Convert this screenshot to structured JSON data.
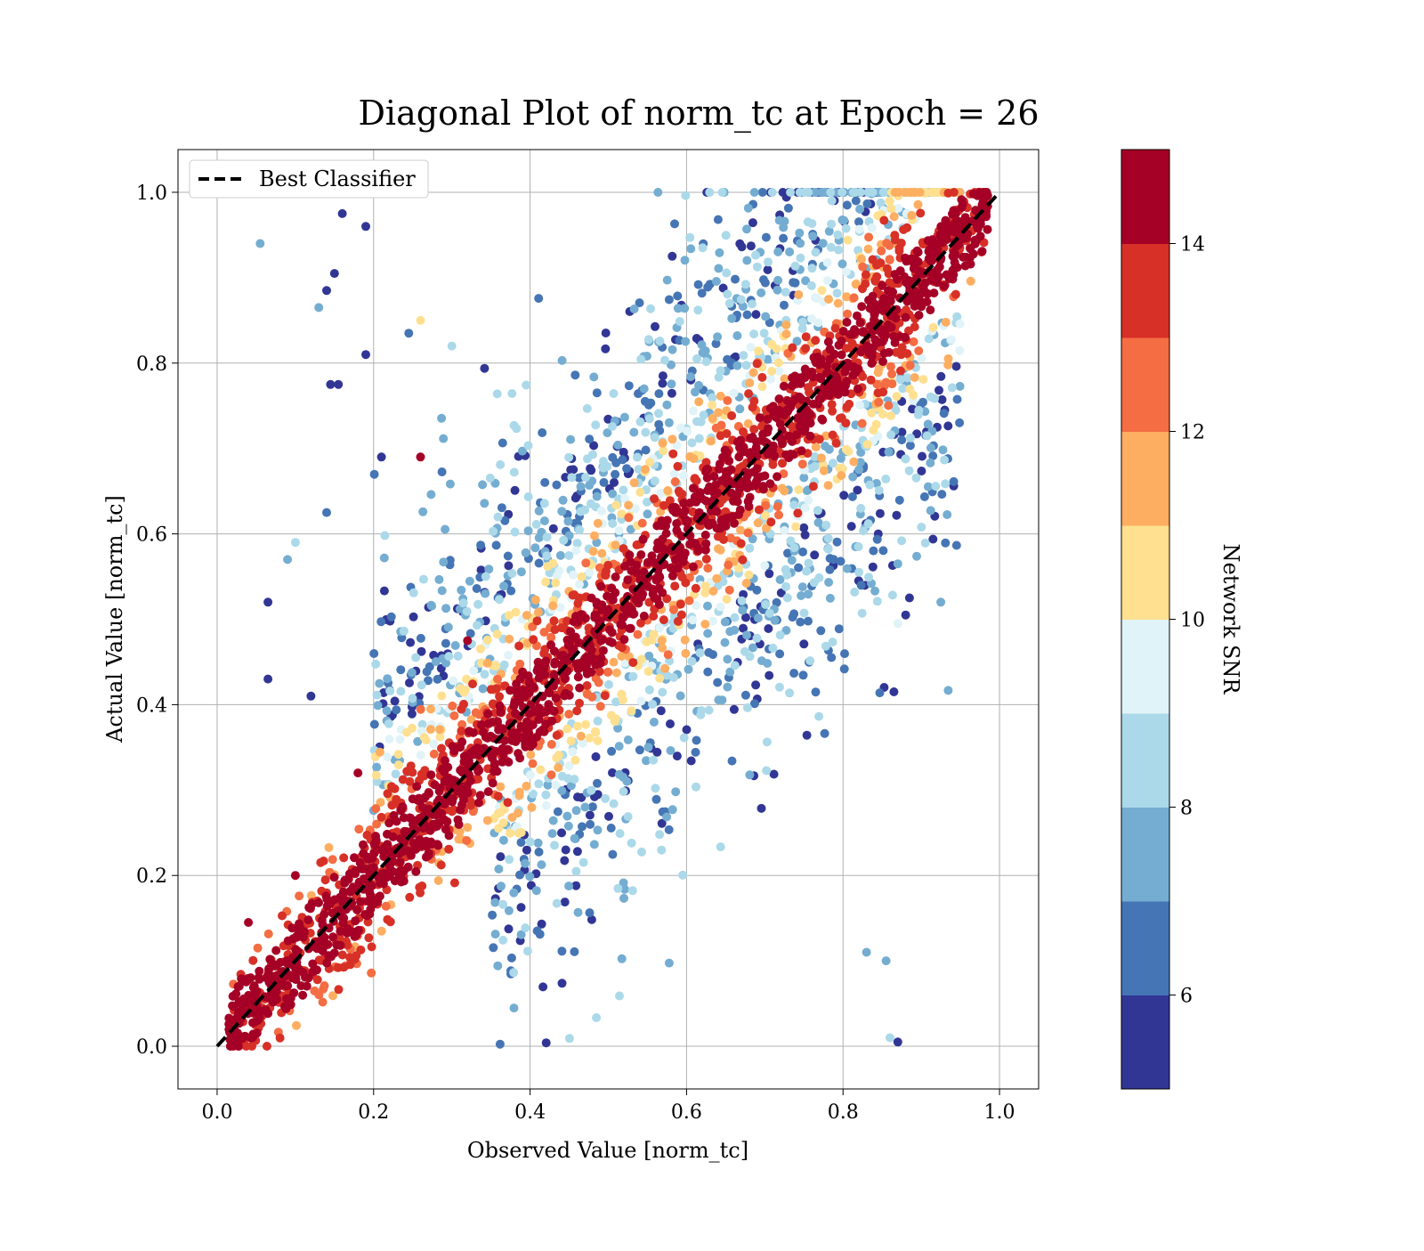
{
  "chart_data": {
    "type": "scatter",
    "title": "Diagonal Plot of norm_tc at Epoch = 26",
    "xlabel": "Observed Value [norm_tc]",
    "ylabel": "Actual Value [norm_tc]",
    "xlim": [
      -0.05,
      1.05
    ],
    "ylim": [
      -0.05,
      1.05
    ],
    "xticks": [
      "0.0",
      "0.2",
      "0.4",
      "0.6",
      "0.8",
      "1.0"
    ],
    "yticks": [
      "0.0",
      "0.2",
      "0.4",
      "0.6",
      "0.8",
      "1.0"
    ],
    "grid": true,
    "legend": {
      "position": "top-left",
      "entries": [
        {
          "name": "Best Classifier",
          "style": "dashed",
          "color": "#000000"
        }
      ]
    },
    "reference_line": {
      "name": "Best Classifier",
      "x": [
        0.0,
        1.0
      ],
      "y": [
        0.0,
        1.0
      ]
    },
    "colorbar": {
      "label": "Network SNR",
      "range": [
        5,
        15
      ],
      "ticks": [
        "6",
        "8",
        "10",
        "12",
        "14"
      ],
      "colors": [
        "#313695",
        "#4575b4",
        "#74add1",
        "#abd9e9",
        "#e0f3f8",
        "#fee090",
        "#fdae61",
        "#f46d43",
        "#d73027",
        "#a50026"
      ]
    },
    "points": [
      [
        0.055,
        0.94,
        7.5
      ],
      [
        0.13,
        0.865,
        7.0
      ],
      [
        0.15,
        0.905,
        5.5
      ],
      [
        0.16,
        0.975,
        5.5
      ],
      [
        0.19,
        0.96,
        5.5
      ],
      [
        0.19,
        0.81,
        5.5
      ],
      [
        0.14,
        0.885,
        5.5
      ],
      [
        0.145,
        0.775,
        5.5
      ],
      [
        0.155,
        0.775,
        5.5
      ],
      [
        0.21,
        0.69,
        5.5
      ],
      [
        0.1,
        0.59,
        8.0
      ],
      [
        0.09,
        0.57,
        7.5
      ],
      [
        0.14,
        0.625,
        6.5
      ],
      [
        0.065,
        0.52,
        5.5
      ],
      [
        0.065,
        0.43,
        5.5
      ],
      [
        0.12,
        0.41,
        5.5
      ],
      [
        0.26,
        0.69,
        14.5
      ],
      [
        0.32,
        0.475,
        14.5
      ],
      [
        0.925,
        0.52,
        7.5
      ],
      [
        0.885,
        0.525,
        5.5
      ],
      [
        0.88,
        0.505,
        5.5
      ],
      [
        0.87,
        0.495,
        9.0
      ],
      [
        0.865,
        0.415,
        5.5
      ],
      [
        0.87,
        0.565,
        7.5
      ],
      [
        0.845,
        0.6,
        5.5
      ],
      [
        0.82,
        0.545,
        5.5
      ],
      [
        0.87,
        0.005,
        5.5
      ],
      [
        0.855,
        0.1,
        7.5
      ],
      [
        0.83,
        0.11,
        7.0
      ],
      [
        0.86,
        0.01,
        8.0
      ],
      [
        0.875,
        0.71,
        6.5
      ],
      [
        0.93,
        0.745,
        5.5
      ],
      [
        0.875,
        0.755,
        5.5
      ],
      [
        0.865,
        0.75,
        8.0
      ],
      [
        0.1,
        0.2,
        14.0
      ],
      [
        0.18,
        0.32,
        14.5
      ],
      [
        0.04,
        0.145,
        14.5
      ],
      [
        0.245,
        0.835,
        6.5
      ],
      [
        0.26,
        0.85,
        10.5
      ],
      [
        0.3,
        0.82,
        8.5
      ]
    ]
  }
}
